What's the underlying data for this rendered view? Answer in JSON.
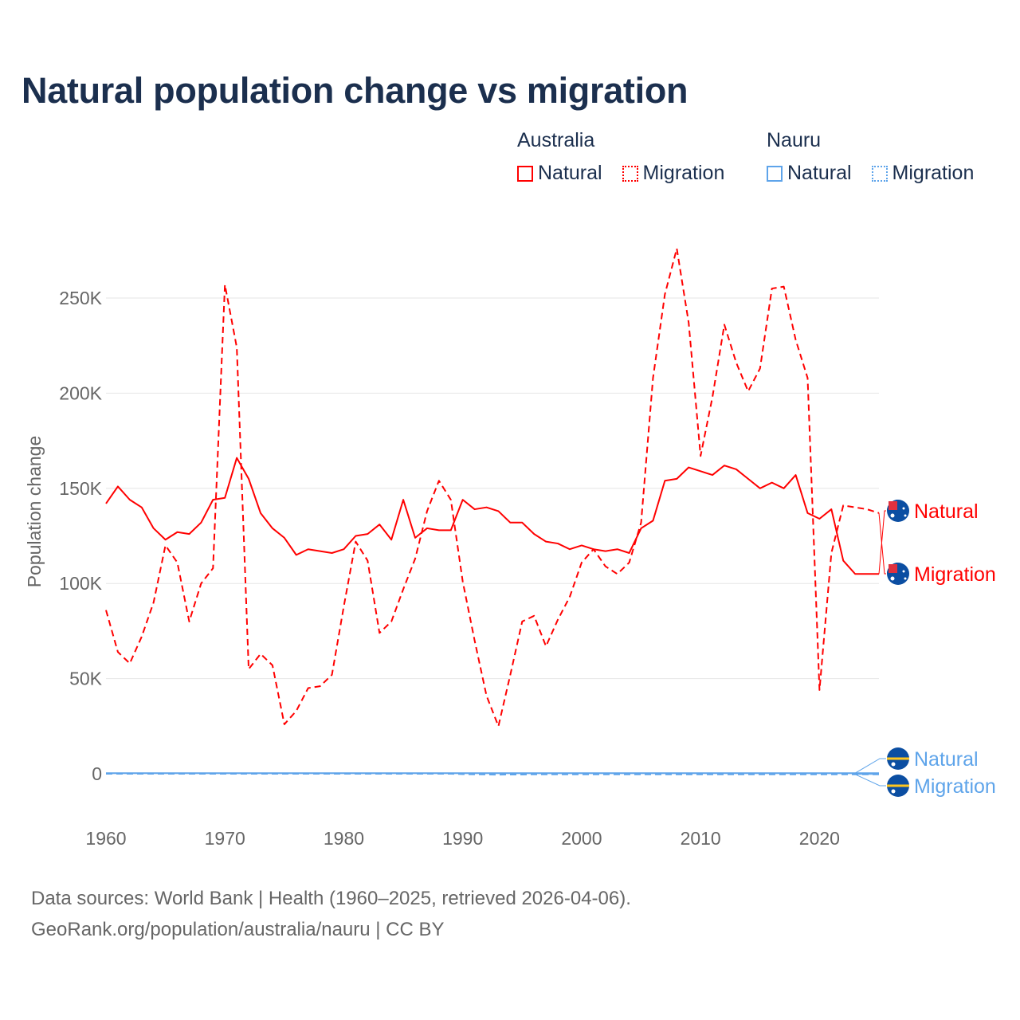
{
  "title": "Natural population change vs migration",
  "legend": {
    "groups": [
      {
        "name": "Australia",
        "items": [
          {
            "label": "Natural",
            "style": "solid"
          },
          {
            "label": "Migration",
            "style": "dotted"
          }
        ],
        "color": "#ff0000"
      },
      {
        "name": "Nauru",
        "items": [
          {
            "label": "Natural",
            "style": "solid"
          },
          {
            "label": "Migration",
            "style": "dotted"
          }
        ],
        "color": "#5ea4ea"
      }
    ]
  },
  "source": {
    "line1": "Data sources: World Bank | Health (1960–2025, retrieved 2026-04-06).",
    "line2": "GeoRank.org/population/australia/nauru | CC BY"
  },
  "chart_data": {
    "type": "line",
    "title": "Natural population change vs migration",
    "xlabel": "",
    "ylabel": "Population change",
    "xlim": [
      1960,
      2025
    ],
    "ylim": [
      -15,
      290
    ],
    "xticks": [
      1960,
      1970,
      1980,
      1990,
      2000,
      2010,
      2020
    ],
    "yticks": [
      {
        "v": 0,
        "label": "0"
      },
      {
        "v": 50,
        "label": "50K"
      },
      {
        "v": 100,
        "label": "100K"
      },
      {
        "v": 150,
        "label": "150K"
      },
      {
        "v": 200,
        "label": "200K"
      },
      {
        "v": 250,
        "label": "250K"
      }
    ],
    "units": "thousands",
    "grid": true,
    "legend_placement": "top-right",
    "x_start": 1960,
    "series": [
      {
        "name": "Australia Natural",
        "end_label": "Natural",
        "color": "#ff0000",
        "dash": "solid",
        "values": [
          142,
          151,
          144,
          140,
          129,
          123,
          127,
          126,
          132,
          144,
          145,
          166,
          155,
          137,
          129,
          124,
          115,
          118,
          117,
          116,
          118,
          125,
          126,
          131,
          123,
          144,
          124,
          129,
          128,
          128,
          144,
          139,
          140,
          138,
          132,
          132,
          126,
          122,
          121,
          118,
          120,
          118,
          117,
          118,
          116,
          129,
          133,
          154,
          155,
          161,
          159,
          157,
          162,
          160,
          155,
          150,
          153,
          150,
          157,
          137,
          134,
          139,
          112,
          105,
          105,
          105
        ]
      },
      {
        "name": "Australia Migration",
        "end_label": "Migration",
        "color": "#ff0000",
        "dash": "dashed",
        "values": [
          86,
          64,
          58,
          72,
          90,
          120,
          111,
          80,
          100,
          108,
          257,
          224,
          55,
          63,
          57,
          26,
          33,
          45,
          46,
          52,
          88,
          122,
          112,
          74,
          80,
          97,
          113,
          138,
          154,
          144,
          101,
          70,
          41,
          25,
          52,
          80,
          83,
          67,
          81,
          93,
          111,
          118,
          109,
          105,
          111,
          132,
          208,
          252,
          276,
          237,
          167,
          198,
          236,
          216,
          201,
          213,
          255,
          256,
          228,
          208,
          44,
          116,
          141,
          140,
          139,
          137
        ]
      },
      {
        "name": "Nauru Natural",
        "end_label": "Natural",
        "color": "#5ea4ea",
        "dash": "solid",
        "values": [
          0.3,
          0.3,
          0.3,
          0.3,
          0.3,
          0.3,
          0.3,
          0.3,
          0.3,
          0.3,
          0.3,
          0.3,
          0.3,
          0.3,
          0.3,
          0.3,
          0.3,
          0.3,
          0.3,
          0.3,
          0.3,
          0.3,
          0.3,
          0.3,
          0.3,
          0.3,
          0.3,
          0.3,
          0.3,
          0.3,
          0.3,
          0.3,
          0.3,
          0.3,
          0.3,
          0.3,
          0.3,
          0.3,
          0.3,
          0.3,
          0.3,
          0.3,
          0.3,
          0.3,
          0.3,
          0.3,
          0.3,
          0.3,
          0.3,
          0.3,
          0.3,
          0.3,
          0.3,
          0.3,
          0.3,
          0.3,
          0.3,
          0.3,
          0.3,
          0.3,
          0.3,
          0.3,
          0.3,
          0.3,
          0.3,
          0.3
        ]
      },
      {
        "name": "Nauru Migration",
        "end_label": "Migration",
        "color": "#5ea4ea",
        "dash": "dashed",
        "values": [
          0,
          0,
          0,
          0,
          0,
          0,
          0,
          0,
          0,
          0,
          0,
          0,
          0,
          0,
          0,
          0,
          0,
          0,
          0,
          0,
          0,
          0,
          0,
          0,
          0,
          0,
          0,
          0,
          0,
          0,
          -0.2,
          -0.3,
          -0.4,
          -0.5,
          -0.4,
          -0.4,
          -0.3,
          -0.3,
          -0.3,
          -0.3,
          -0.3,
          -0.3,
          -0.3,
          -0.3,
          -0.3,
          -0.3,
          -0.3,
          -0.3,
          -0.3,
          -0.3,
          -0.3,
          -0.3,
          -0.3,
          -0.3,
          -0.3,
          -0.3,
          -0.3,
          -0.3,
          -0.3,
          -0.3,
          -0.3,
          -0.3,
          -0.3,
          -0.3,
          -0.3,
          -0.3
        ]
      }
    ]
  }
}
